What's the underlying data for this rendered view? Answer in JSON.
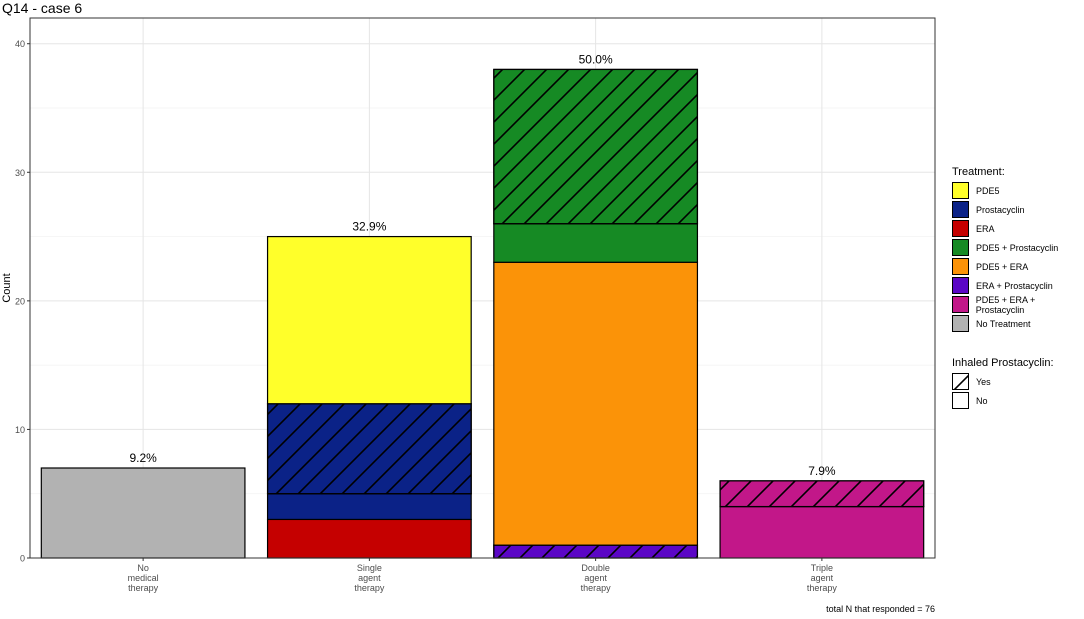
{
  "title": "Q14 - case 6",
  "caption": "total N that responded = 76",
  "colors": {
    "PDE5": "#FFFF2A",
    "Prostacyclin": "#0B2287",
    "ERA": "#C50000",
    "PDE5 + Prostacyclin": "#168A24",
    "PDE5 + ERA": "#FB9308",
    "ERA + Prostacyclin": "#5B06C6",
    "PDE5 + ERA + Prostacyclin": "#C21789",
    "No Treatment": "#B2B2B2"
  },
  "legend": {
    "treatment_title": "Treatment:",
    "treatment_items": [
      "PDE5",
      "Prostacyclin",
      "ERA",
      "PDE5 + Prostacyclin",
      "PDE5 + ERA",
      "ERA + Prostacyclin",
      "PDE5 + ERA + Prostacyclin",
      "No Treatment"
    ],
    "inhaled_title": "Inhaled Prostacyclin:",
    "inhaled_items": [
      "Yes",
      "No"
    ]
  },
  "chart_data": {
    "type": "bar",
    "stacked": true,
    "title": "Q14 - case 6",
    "xlabel": "",
    "ylabel": "Count",
    "ylim": [
      0,
      42
    ],
    "yticks": [
      0,
      10,
      20,
      30,
      40
    ],
    "grid": true,
    "legend_position": "right",
    "categories": [
      [
        "No",
        "medical",
        "therapy"
      ],
      [
        "Single",
        "agent",
        "therapy"
      ],
      [
        "Double",
        "agent",
        "therapy"
      ],
      [
        "Triple",
        "agent",
        "therapy"
      ]
    ],
    "totals": [
      7,
      25,
      38,
      6
    ],
    "percent_labels": [
      "9.2%",
      "32.9%",
      "50.0%",
      "7.9%"
    ],
    "segments": [
      [
        {
          "treatment": "No Treatment",
          "inhaled": "No",
          "value": 7
        }
      ],
      [
        {
          "treatment": "ERA",
          "inhaled": "No",
          "value": 3
        },
        {
          "treatment": "Prostacyclin",
          "inhaled": "No",
          "value": 2
        },
        {
          "treatment": "Prostacyclin",
          "inhaled": "Yes",
          "value": 7
        },
        {
          "treatment": "PDE5",
          "inhaled": "No",
          "value": 13
        }
      ],
      [
        {
          "treatment": "ERA + Prostacyclin",
          "inhaled": "Yes",
          "value": 1
        },
        {
          "treatment": "PDE5 + ERA",
          "inhaled": "No",
          "value": 22
        },
        {
          "treatment": "PDE5 + Prostacyclin",
          "inhaled": "No",
          "value": 3
        },
        {
          "treatment": "PDE5 + Prostacyclin",
          "inhaled": "Yes",
          "value": 12
        }
      ],
      [
        {
          "treatment": "PDE5 + ERA + Prostacyclin",
          "inhaled": "No",
          "value": 4
        },
        {
          "treatment": "PDE5 + ERA + Prostacyclin",
          "inhaled": "Yes",
          "value": 2
        }
      ]
    ]
  }
}
